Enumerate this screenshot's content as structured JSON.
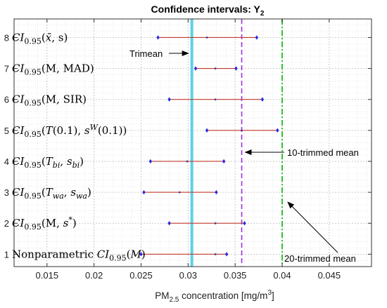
{
  "chart_data": {
    "type": "errorbar",
    "title": "Confidence intervals: Y",
    "title_sub": "2",
    "xlabel": "PM",
    "xlabel_sub": "2.5",
    "xlabel_rest": " concentration [mg/m",
    "xlabel_sup": "3",
    "xlabel_end": "]",
    "xlim": [
      0.0115,
      0.0495
    ],
    "ylim": [
      0.6,
      8.6
    ],
    "xticks": [
      0.015,
      0.02,
      0.025,
      0.03,
      0.035,
      0.04,
      0.045
    ],
    "xtick_labels": [
      "0.015",
      "0.02",
      "0.025",
      "0.03",
      "0.035",
      "0.04",
      "0.045"
    ],
    "yticks": [
      1,
      2,
      3,
      4,
      5,
      6,
      7,
      8
    ],
    "ytick_labels": [
      "1",
      "2",
      "3",
      "4",
      "5",
      "6",
      "7",
      "8"
    ],
    "grid": true,
    "intervals": [
      {
        "y": 8,
        "low": 0.0268,
        "mid": 0.032,
        "high": 0.0373,
        "label": [
          {
            "t": "CI"
          },
          {
            "t": "0.95",
            "sub": true
          },
          {
            "t": "("
          },
          {
            "t": "x̄",
            "italic": true
          },
          {
            "t": ", s)"
          }
        ]
      },
      {
        "y": 7,
        "low": 0.0308,
        "mid": 0.0329,
        "high": 0.0351,
        "label": [
          {
            "t": "CI"
          },
          {
            "t": "0.95",
            "sub": true
          },
          {
            "t": "(M, MAD)"
          }
        ]
      },
      {
        "y": 6,
        "low": 0.028,
        "mid": 0.0329,
        "high": 0.0379,
        "label": [
          {
            "t": "CI"
          },
          {
            "t": "0.95",
            "sub": true
          },
          {
            "t": "(M, SIR)"
          }
        ]
      },
      {
        "y": 5,
        "low": 0.032,
        "mid": 0.0357,
        "high": 0.0395,
        "label": [
          {
            "t": "CI"
          },
          {
            "t": "0.95",
            "sub": true
          },
          {
            "t": "("
          },
          {
            "t": "T",
            "italic": true
          },
          {
            "t": "(0.1), "
          },
          {
            "t": "s",
            "italic": true
          },
          {
            "t": "W",
            "sup": true,
            "italic": true
          },
          {
            "t": "(0.1))"
          }
        ]
      },
      {
        "y": 4,
        "low": 0.026,
        "mid": 0.0299,
        "high": 0.0338,
        "label": [
          {
            "t": "CI"
          },
          {
            "t": "0.95",
            "sub": true
          },
          {
            "t": "("
          },
          {
            "t": "T",
            "italic": true
          },
          {
            "t": "bi",
            "sub": true,
            "italic": true
          },
          {
            "t": ", "
          },
          {
            "t": "s",
            "italic": true
          },
          {
            "t": "bi",
            "sub": true,
            "italic": true
          },
          {
            "t": ")"
          }
        ]
      },
      {
        "y": 3,
        "low": 0.0253,
        "mid": 0.0291,
        "high": 0.033,
        "label": [
          {
            "t": "CI"
          },
          {
            "t": "0.95",
            "sub": true
          },
          {
            "t": "("
          },
          {
            "t": "T",
            "italic": true
          },
          {
            "t": "wa",
            "sub": true,
            "italic": true
          },
          {
            "t": ", "
          },
          {
            "t": "s",
            "italic": true
          },
          {
            "t": "wa",
            "sub": true,
            "italic": true
          },
          {
            "t": ")"
          }
        ]
      },
      {
        "y": 2,
        "low": 0.028,
        "mid": 0.0329,
        "high": 0.036,
        "label": [
          {
            "t": "CI"
          },
          {
            "t": "0.95",
            "sub": true
          },
          {
            "t": "(M, "
          },
          {
            "t": "s",
            "italic": true
          },
          {
            "t": "*",
            "sup": true
          },
          {
            "t": ")"
          }
        ]
      },
      {
        "y": 1,
        "low": 0.025,
        "mid": 0.0329,
        "high": 0.0341,
        "label": [
          {
            "t": "Nonparametric "
          },
          {
            "t": "CI"
          },
          {
            "t": "0.95",
            "sub": true
          },
          {
            "t": "("
          },
          {
            "t": "M",
            "italic": true
          },
          {
            "t": ")"
          }
        ]
      }
    ],
    "reference_lines": [
      {
        "name": "Trimean",
        "x": 0.0304,
        "color": "#5bd2e6",
        "style": "solid"
      },
      {
        "name": "10-trimmed mean",
        "x": 0.0357,
        "color": "#9b30d9",
        "style": "dashed"
      },
      {
        "name": "20-trimmed mean",
        "x": 0.04,
        "color": "#2ec42e",
        "style": "dashdot"
      }
    ],
    "annotations": [
      {
        "text": "Trimean"
      },
      {
        "text": "10-trimmed mean"
      },
      {
        "text": "20-trimmed mean"
      }
    ],
    "colors": {
      "interval_line": "#c0392b",
      "marker": "#2a2ae0",
      "grid": "#cfcfcf",
      "axis": "#333333"
    }
  }
}
